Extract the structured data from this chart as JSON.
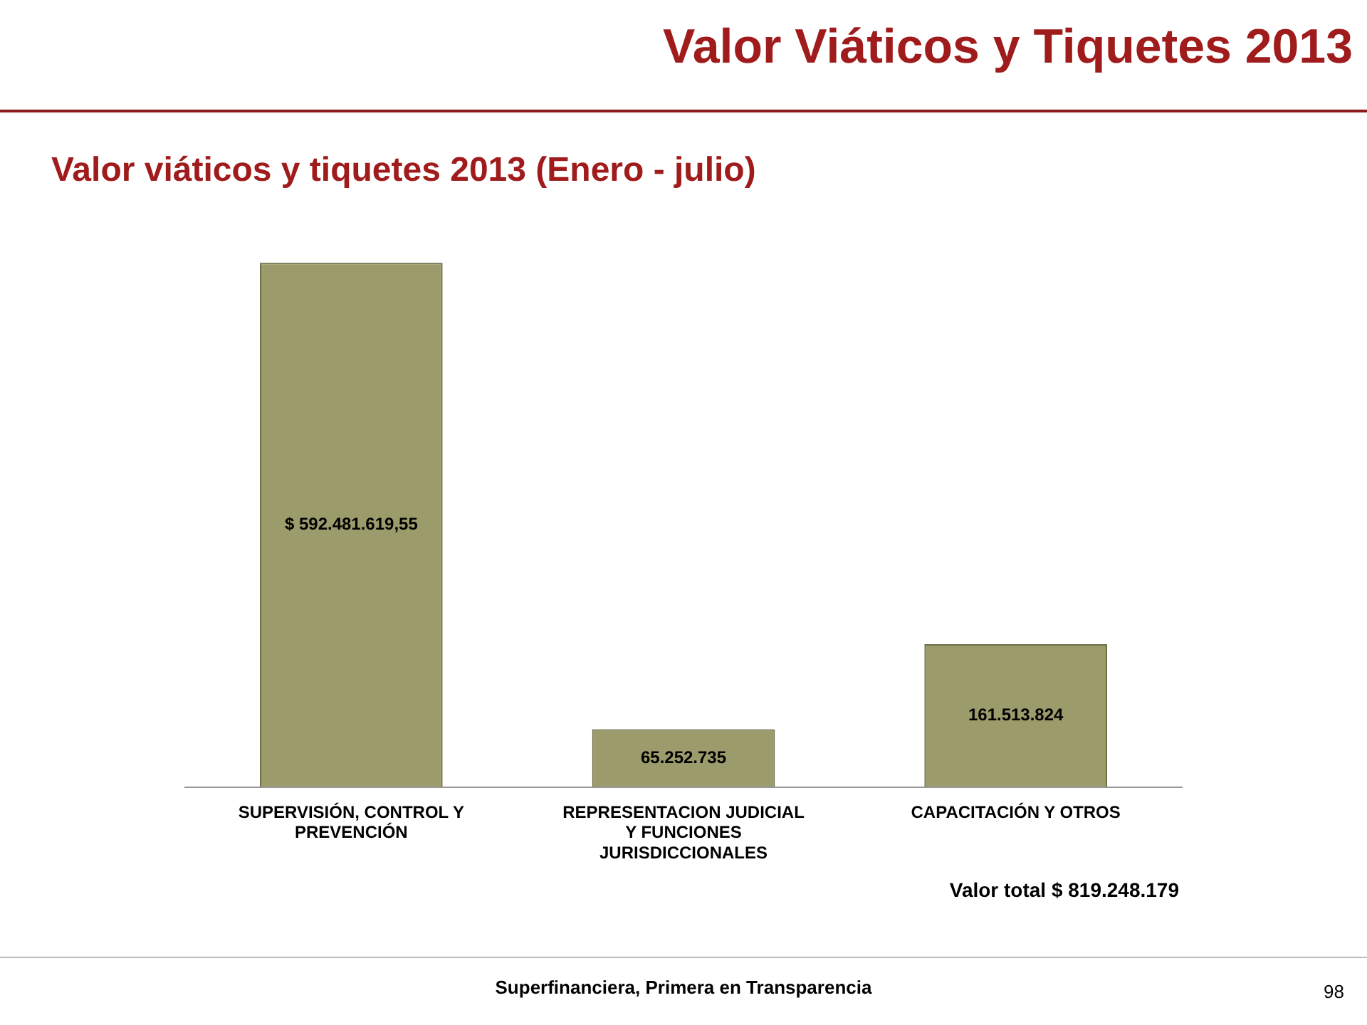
{
  "chart_data": {
    "type": "bar",
    "title": "Valor Viáticos y Tiquetes 2013",
    "subtitle": "Valor viáticos y tiquetes 2013 (Enero - julio)",
    "categories": [
      "SUPERVISIÓN, CONTROL Y PREVENCIÓN",
      "REPRESENTACION JUDICIAL Y FUNCIONES JURISDICCIONALES",
      "CAPACITACIÓN Y OTROS"
    ],
    "values": [
      592481619.55,
      65252735,
      161513824
    ],
    "value_labels": [
      "$ 592.481.619,55",
      "65.252.735",
      "161.513.824"
    ],
    "color": "#9c9b6b",
    "annotations": [
      "Valor total $ 819.248.179",
      "Superfinanciera, Primera en Transparencia",
      "98"
    ]
  }
}
